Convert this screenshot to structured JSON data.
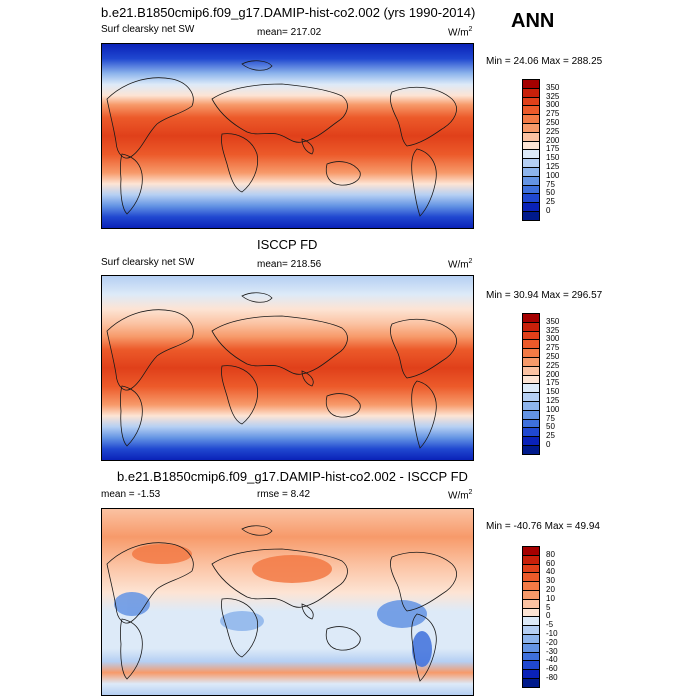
{
  "season": "ANN",
  "panels": [
    {
      "title": "b.e21.B1850cmip6.f09_g17.DAMIP-hist-co2.002 (yrs 1990-2014)",
      "left_label": "Surf clearsky net SW",
      "center_label": "mean= 217.02",
      "units_base": "W/m",
      "units_exp": "2",
      "minmax": "Min =  24.06 Max = 288.25",
      "colorbar_labels": [
        "350",
        "325",
        "300",
        "275",
        "250",
        "225",
        "200",
        "175",
        "150",
        "125",
        "100",
        "75",
        "50",
        "25",
        "0"
      ],
      "colorbar_colors": [
        "#a50000",
        "#c8200a",
        "#e0401a",
        "#ec5a2a",
        "#f37a45",
        "#f79a6a",
        "#fbc2a2",
        "#fde4d4",
        "#ddeaf8",
        "#b5cff3",
        "#8db4ec",
        "#6494e4",
        "#3e70dc",
        "#2048d0",
        "#0a22b8",
        "#001a8c"
      ]
    },
    {
      "title": "ISCCP FD",
      "left_label": "Surf clearsky net SW",
      "center_label": "mean= 218.56",
      "units_base": "W/m",
      "units_exp": "2",
      "minmax": "Min =  30.94 Max = 296.57",
      "colorbar_labels": [
        "350",
        "325",
        "300",
        "275",
        "250",
        "225",
        "200",
        "175",
        "150",
        "125",
        "100",
        "75",
        "50",
        "25",
        "0"
      ],
      "colorbar_colors": [
        "#a50000",
        "#c8200a",
        "#e0401a",
        "#ec5a2a",
        "#f37a45",
        "#f79a6a",
        "#fbc2a2",
        "#fde4d4",
        "#ddeaf8",
        "#b5cff3",
        "#8db4ec",
        "#6494e4",
        "#3e70dc",
        "#2048d0",
        "#0a22b8",
        "#001a8c"
      ]
    },
    {
      "title": "b.e21.B1850cmip6.f09_g17.DAMIP-hist-co2.002 - ISCCP FD",
      "left_label": "mean =  -1.53",
      "center_label": "rmse =   8.42",
      "units_base": "W/m",
      "units_exp": "2",
      "minmax": "Min = -40.76 Max =  49.94",
      "colorbar_labels": [
        "80",
        "60",
        "40",
        "30",
        "20",
        "10",
        "5",
        "0",
        "-5",
        "-10",
        "-20",
        "-30",
        "-40",
        "-60",
        "-80"
      ],
      "colorbar_colors": [
        "#a50000",
        "#c8200a",
        "#e0401a",
        "#ec5a2a",
        "#f37a45",
        "#f79a6a",
        "#fbc2a2",
        "#fde4d4",
        "#ddeaf8",
        "#b5cff3",
        "#8db4ec",
        "#6494e4",
        "#3e70dc",
        "#2048d0",
        "#0a22b8",
        "#001a8c"
      ]
    }
  ]
}
